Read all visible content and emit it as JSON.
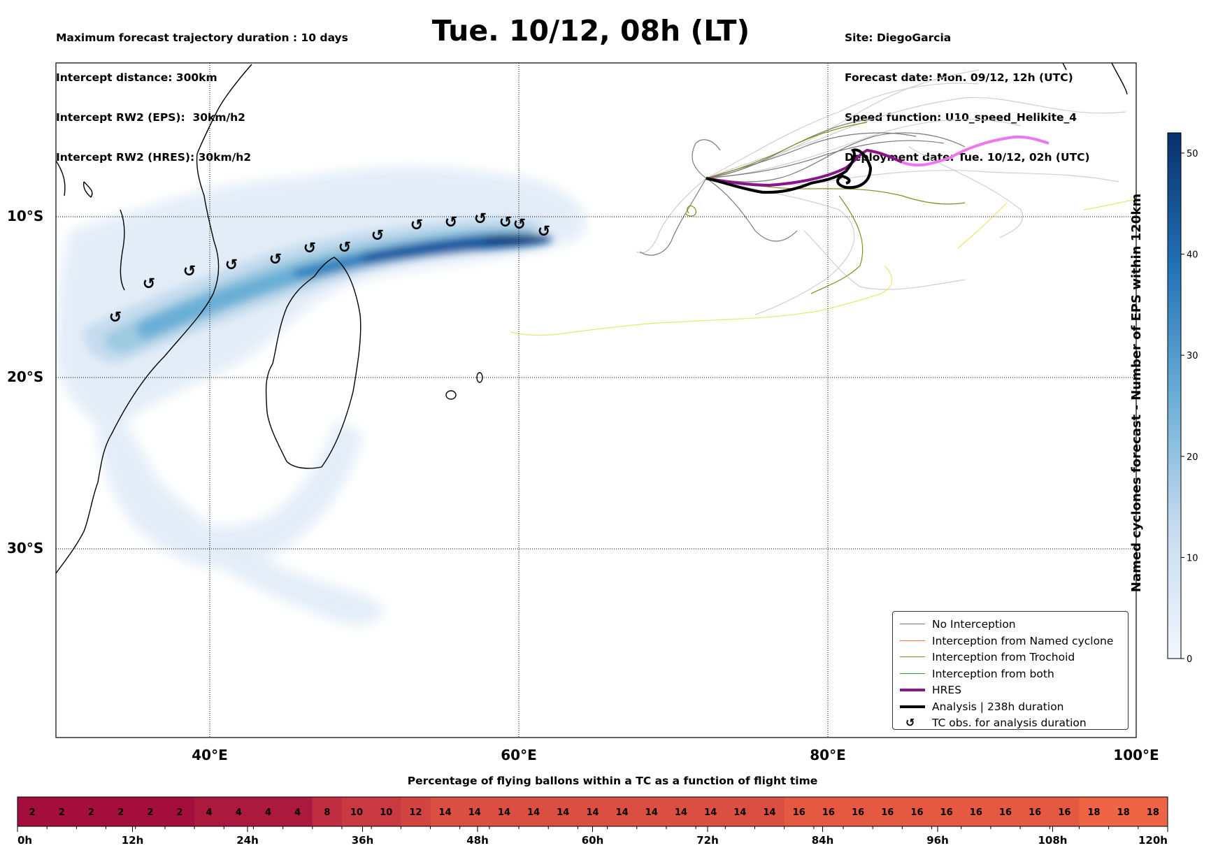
{
  "header_left": [
    "Maximum forecast trajectory duration : 10 days",
    "Intercept distance: 300km",
    "Intercept RW2 (EPS):  30km/h2",
    "Intercept RW2 (HRES): 30km/h2"
  ],
  "title": "Tue. 10/12, 08h (LT)",
  "header_right": [
    "Site: DiegoGarcia",
    "Forecast date: Mon. 09/12, 12h (UTC)",
    "Speed function: U10_speed_Helikite_4",
    "Deployment date: Tue. 10/12, 02h (UTC)"
  ],
  "map": {
    "lat_labels": [
      "10°S",
      "20°S",
      "30°S"
    ],
    "lon_labels": [
      "40°E",
      "60°E",
      "80°E",
      "100°E"
    ],
    "gridlines": true
  },
  "legend": {
    "placement": "lower-right",
    "items": [
      {
        "label": "No Interception",
        "color": "#7a7a7a",
        "width": 1.5
      },
      {
        "label": "Interception from Named cyclone",
        "color": "#ff6a3d",
        "width": 1.5
      },
      {
        "label": "Interception from Trochoid",
        "color": "#8a8a1a",
        "width": 1.5
      },
      {
        "label": "Interception from both",
        "color": "#2aa52a",
        "width": 1.5
      },
      {
        "label": "HRES",
        "color": "#8b148b",
        "width": 4
      },
      {
        "label": "Analysis | 238h duration",
        "color": "#000000",
        "width": 4
      },
      {
        "label": "TC obs. for analysis duration",
        "icon": "cyclone-symbol-icon"
      }
    ]
  },
  "colorbar": {
    "label": "Named cyclones forecast - Number of EPS within 120km",
    "ticks": [
      "0",
      "10",
      "20",
      "30",
      "40",
      "50"
    ],
    "max": 52,
    "colors": {
      "low": "#eef4fb",
      "high": "#0b3d7a"
    }
  },
  "flight_strip": {
    "title": "Percentage of flying ballons within a TC as a function of flight time",
    "values": [
      2,
      2,
      2,
      2,
      2,
      2,
      4,
      4,
      4,
      4,
      8,
      10,
      10,
      12,
      14,
      14,
      14,
      14,
      14,
      14,
      14,
      14,
      14,
      14,
      14,
      14,
      16,
      16,
      16,
      16,
      16,
      16,
      16,
      16,
      16,
      16,
      18,
      18,
      18
    ],
    "time_labels": [
      "0h",
      "12h",
      "24h",
      "36h",
      "48h",
      "60h",
      "72h",
      "84h",
      "96h",
      "108h",
      "120h"
    ]
  },
  "colors": {
    "no_interception": "#7a7a7a",
    "trochoid": "#8a8a1a",
    "hres": "#8b148b",
    "hres_forecast": "#ee77ee",
    "yellow_track": "#e8e86a",
    "light_track": "#c8c8c8"
  }
}
